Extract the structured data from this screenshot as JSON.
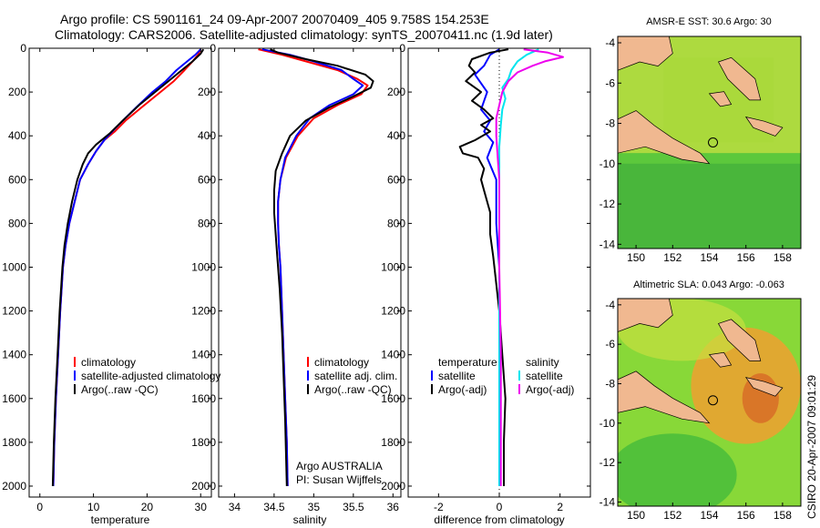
{
  "header": {
    "line1": "Argo profile: CS 5901161_24 09-Apr-2007 20070409_405 9.758S 154.253E",
    "line2": "Climatology: CARS2006. Satellite-adjusted climatology: synTS_20070411.nc (1.9d later)"
  },
  "side_label": "CSIRO 20-Apr-2007 09:01:29",
  "chart_data": [
    {
      "id": "temperature",
      "type": "line",
      "xlabel": "temperature",
      "xlim": [
        -2,
        32
      ],
      "ylim": [
        2050,
        0
      ],
      "xticks": [
        0,
        10,
        20,
        30
      ],
      "yticks": [
        0,
        200,
        400,
        600,
        800,
        1000,
        1200,
        1400,
        1600,
        1800,
        2000
      ],
      "legend": [
        "climatology",
        "satellite-adjusted climatology",
        "Argo(..raw -QC)"
      ],
      "series": [
        {
          "name": "climatology",
          "color": "#ff0000",
          "points": [
            [
              30.0,
              5
            ],
            [
              29.5,
              30
            ],
            [
              28.5,
              60
            ],
            [
              27,
              100
            ],
            [
              25,
              150
            ],
            [
              22.5,
              200
            ],
            [
              19,
              270
            ],
            [
              16,
              330
            ],
            [
              14,
              380
            ],
            [
              12,
              420
            ],
            [
              10.5,
              470
            ],
            [
              9,
              530
            ],
            [
              7.5,
              600
            ],
            [
              6.5,
              700
            ],
            [
              5.5,
              800
            ],
            [
              4.8,
              900
            ],
            [
              4.3,
              1000
            ],
            [
              3.8,
              1200
            ],
            [
              3.4,
              1400
            ],
            [
              3.0,
              1600
            ],
            [
              2.7,
              1800
            ],
            [
              2.5,
              2000
            ]
          ]
        },
        {
          "name": "satellite-adjusted climatology",
          "color": "#0000ff",
          "points": [
            [
              30.0,
              5
            ],
            [
              29,
              30
            ],
            [
              27.5,
              60
            ],
            [
              25.5,
              100
            ],
            [
              23.5,
              150
            ],
            [
              21,
              200
            ],
            [
              18,
              270
            ],
            [
              15.5,
              330
            ],
            [
              13.5,
              380
            ],
            [
              12,
              420
            ],
            [
              10.5,
              470
            ],
            [
              9,
              530
            ],
            [
              7.5,
              600
            ],
            [
              6.5,
              700
            ],
            [
              5.5,
              800
            ],
            [
              4.8,
              900
            ],
            [
              4.3,
              1000
            ],
            [
              3.8,
              1200
            ],
            [
              3.4,
              1400
            ],
            [
              3.0,
              1600
            ],
            [
              2.7,
              1800
            ],
            [
              2.5,
              2000
            ]
          ]
        },
        {
          "name": "Argo(..raw -QC)",
          "color": "#000000",
          "points": [
            [
              30.5,
              5
            ],
            [
              30,
              25
            ],
            [
              28.5,
              60
            ],
            [
              26.5,
              100
            ],
            [
              24,
              150
            ],
            [
              21.5,
              200
            ],
            [
              18.5,
              260
            ],
            [
              15.5,
              330
            ],
            [
              13,
              390
            ],
            [
              10.5,
              440
            ],
            [
              9,
              480
            ],
            [
              8,
              530
            ],
            [
              7,
              600
            ],
            [
              6,
              700
            ],
            [
              5.2,
              800
            ],
            [
              4.6,
              900
            ],
            [
              4.2,
              1000
            ],
            [
              3.7,
              1200
            ],
            [
              3.3,
              1400
            ],
            [
              2.9,
              1600
            ],
            [
              2.6,
              1800
            ],
            [
              2.4,
              2000
            ]
          ]
        }
      ]
    },
    {
      "id": "salinity",
      "type": "line",
      "xlabel": "salinity",
      "xlim": [
        33.8,
        36.1
      ],
      "ylim": [
        2050,
        0
      ],
      "xticks": [
        34,
        34.5,
        35,
        35.5,
        36
      ],
      "yticks": [
        0,
        200,
        400,
        600,
        800,
        1000,
        1200,
        1400,
        1600,
        1800,
        2000
      ],
      "legend": [
        "climatology",
        "satellite adj. clim.",
        "Argo(..raw -QC)"
      ],
      "annotation": [
        "Argo AUSTRALIA",
        "PI: Susan Wijffels"
      ],
      "series": [
        {
          "name": "climatology",
          "color": "#ff0000",
          "points": [
            [
              34.3,
              5
            ],
            [
              34.6,
              30
            ],
            [
              34.9,
              60
            ],
            [
              35.3,
              100
            ],
            [
              35.55,
              140
            ],
            [
              35.68,
              170
            ],
            [
              35.6,
              210
            ],
            [
              35.3,
              260
            ],
            [
              35.0,
              320
            ],
            [
              34.8,
              400
            ],
            [
              34.65,
              500
            ],
            [
              34.58,
              600
            ],
            [
              34.55,
              700
            ],
            [
              34.55,
              800
            ],
            [
              34.56,
              900
            ],
            [
              34.58,
              1000
            ],
            [
              34.6,
              1200
            ],
            [
              34.62,
              1400
            ],
            [
              34.64,
              1600
            ],
            [
              34.66,
              1800
            ],
            [
              34.67,
              2000
            ]
          ]
        },
        {
          "name": "satellite adj. clim.",
          "color": "#0000ff",
          "points": [
            [
              34.35,
              5
            ],
            [
              34.7,
              30
            ],
            [
              35.0,
              60
            ],
            [
              35.35,
              100
            ],
            [
              35.5,
              140
            ],
            [
              35.62,
              170
            ],
            [
              35.5,
              210
            ],
            [
              35.2,
              260
            ],
            [
              34.95,
              320
            ],
            [
              34.78,
              400
            ],
            [
              34.64,
              500
            ],
            [
              34.58,
              600
            ],
            [
              34.55,
              700
            ],
            [
              34.55,
              800
            ],
            [
              34.56,
              900
            ],
            [
              34.58,
              1000
            ],
            [
              34.6,
              1200
            ],
            [
              34.62,
              1400
            ],
            [
              34.64,
              1600
            ],
            [
              34.66,
              1800
            ],
            [
              34.67,
              2000
            ]
          ]
        },
        {
          "name": "Argo(..raw -QC)",
          "color": "#000000",
          "points": [
            [
              34.45,
              5
            ],
            [
              34.55,
              20
            ],
            [
              34.9,
              50
            ],
            [
              35.3,
              80
            ],
            [
              35.65,
              120
            ],
            [
              35.75,
              150
            ],
            [
              35.72,
              180
            ],
            [
              35.5,
              220
            ],
            [
              35.2,
              270
            ],
            [
              34.9,
              330
            ],
            [
              34.7,
              400
            ],
            [
              34.6,
              480
            ],
            [
              34.52,
              560
            ],
            [
              34.5,
              650
            ],
            [
              34.5,
              750
            ],
            [
              34.52,
              850
            ],
            [
              34.54,
              950
            ],
            [
              34.57,
              1100
            ],
            [
              34.6,
              1300
            ],
            [
              34.62,
              1500
            ],
            [
              34.64,
              1700
            ],
            [
              34.66,
              2000
            ]
          ]
        }
      ]
    },
    {
      "id": "difference",
      "type": "line",
      "xlabel": "difference from climatology",
      "xlim": [
        -3,
        3
      ],
      "ylim": [
        2050,
        0
      ],
      "xticks": [
        -2,
        0,
        2
      ],
      "yticks": [
        0,
        200,
        400,
        600,
        800,
        1000,
        1200,
        1400,
        1600,
        1800,
        2000
      ],
      "legend_left_title": "temperature",
      "legend_right_title": "salinity",
      "legend": [
        "satellite",
        "Argo(-adj)",
        "satellite",
        "Argo(-adj)"
      ],
      "series": [
        {
          "name": "temperature satellite",
          "color": "#0000ff",
          "points": [
            [
              0,
              5
            ],
            [
              -0.3,
              30
            ],
            [
              -0.5,
              80
            ],
            [
              -0.8,
              120
            ],
            [
              -0.4,
              200
            ],
            [
              -0.6,
              280
            ],
            [
              -0.3,
              330
            ],
            [
              -0.5,
              380
            ],
            [
              -0.2,
              430
            ],
            [
              -0.4,
              500
            ],
            [
              -0.1,
              600
            ],
            [
              -0.1,
              800
            ],
            [
              0,
              1000
            ],
            [
              0,
              1500
            ],
            [
              0,
              2000
            ]
          ]
        },
        {
          "name": "temperature Argo(-adj)",
          "color": "#000000",
          "points": [
            [
              0.3,
              5
            ],
            [
              -0.3,
              20
            ],
            [
              -0.9,
              50
            ],
            [
              -1.0,
              80
            ],
            [
              -0.8,
              110
            ],
            [
              -1.1,
              150
            ],
            [
              -0.6,
              200
            ],
            [
              -0.9,
              240
            ],
            [
              -0.5,
              280
            ],
            [
              -0.2,
              320
            ],
            [
              -0.6,
              350
            ],
            [
              -0.3,
              380
            ],
            [
              -0.8,
              420
            ],
            [
              -1.3,
              450
            ],
            [
              -1.2,
              480
            ],
            [
              -0.7,
              500
            ],
            [
              -0.5,
              550
            ],
            [
              -0.6,
              600
            ],
            [
              -0.5,
              650
            ],
            [
              -0.3,
              750
            ],
            [
              -0.3,
              850
            ],
            [
              -0.2,
              950
            ],
            [
              0,
              1200
            ],
            [
              0.1,
              1400
            ],
            [
              0.2,
              1600
            ],
            [
              0.15,
              1800
            ],
            [
              0.15,
              2000
            ]
          ]
        },
        {
          "name": "salinity satellite",
          "color": "#00e5ee",
          "points": [
            [
              1.3,
              5
            ],
            [
              0.9,
              30
            ],
            [
              0.6,
              60
            ],
            [
              0.4,
              100
            ],
            [
              0.3,
              140
            ],
            [
              0.1,
              180
            ],
            [
              0.2,
              230
            ],
            [
              0.1,
              280
            ],
            [
              0.05,
              350
            ],
            [
              0,
              450
            ],
            [
              0,
              600
            ],
            [
              0,
              800
            ],
            [
              0,
              1000
            ],
            [
              0,
              1500
            ],
            [
              0,
              2000
            ]
          ]
        },
        {
          "name": "salinity Argo(-adj)",
          "color": "#ee00ee",
          "points": [
            [
              0.8,
              5
            ],
            [
              1.6,
              20
            ],
            [
              2.1,
              40
            ],
            [
              1.5,
              60
            ],
            [
              1.1,
              80
            ],
            [
              0.6,
              110
            ],
            [
              0.3,
              150
            ],
            [
              0.1,
              200
            ],
            [
              0,
              260
            ],
            [
              -0.1,
              320
            ],
            [
              -0.1,
              400
            ],
            [
              -0.05,
              500
            ],
            [
              0,
              600
            ],
            [
              0,
              800
            ],
            [
              0,
              1000
            ],
            [
              0.05,
              1400
            ],
            [
              0.05,
              1800
            ],
            [
              0.05,
              2000
            ]
          ]
        }
      ]
    }
  ],
  "maps": [
    {
      "id": "sst",
      "title": "AMSR-E SST: 30.6 Argo: 30",
      "xticks": [
        "150",
        "152",
        "154",
        "156",
        "158"
      ],
      "yticks": [
        "-4",
        "-6",
        "-8",
        "-10",
        "-12",
        "-14"
      ]
    },
    {
      "id": "sla",
      "title": "Altimetric SLA: 0.043 Argo: -0.063",
      "xticks": [
        "150",
        "152",
        "154",
        "156",
        "158"
      ],
      "yticks": [
        "-4",
        "-6",
        "-8",
        "-10",
        "-12",
        "-14"
      ]
    }
  ],
  "colors": {
    "land": "#f0b890",
    "sst_green": "#5cc83c",
    "sst_yellow": "#c8e040",
    "sla_green": "#88d838",
    "sla_orange": "#f0a030"
  }
}
